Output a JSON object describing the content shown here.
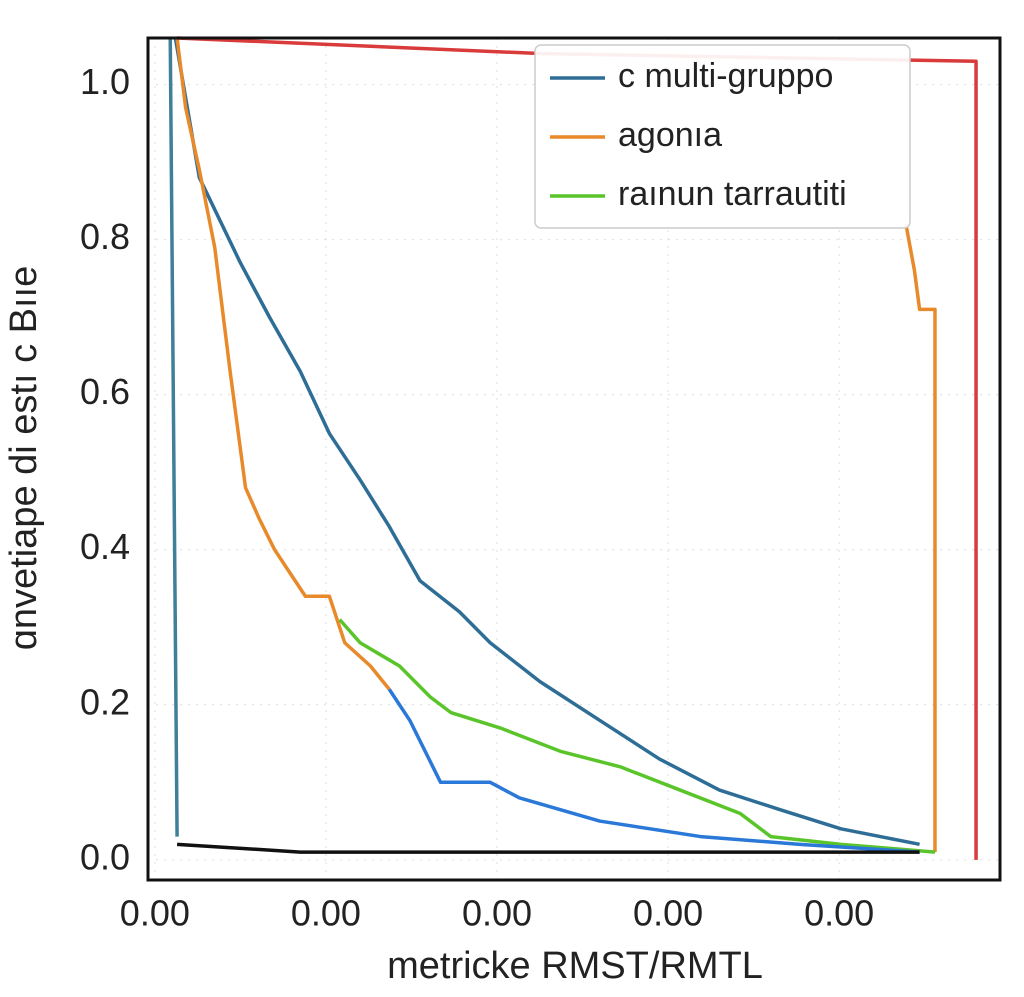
{
  "chart_data": {
    "type": "line",
    "y_label": "ɑnvetiape  di estı c Bııe",
    "x_label": "metricke RMST/RMTL",
    "xlim": [
      -0.04,
      4.94
    ],
    "ylim": [
      -0.026,
      1.06
    ],
    "xticks": [
      {
        "value": 0,
        "label": "0.00"
      },
      {
        "value": 1,
        "label": "0.00"
      },
      {
        "value": 2,
        "label": "0.00"
      },
      {
        "value": 3,
        "label": "0.00"
      },
      {
        "value": 4,
        "label": "0.00"
      }
    ],
    "yticks": [
      {
        "value": 0,
        "label": "0.0"
      },
      0.2,
      0.4,
      0.6,
      0.8,
      {
        "value": 1,
        "label": "1.0"
      }
    ],
    "grid": true,
    "legend": "upper right",
    "series": [
      {
        "name": "c multi-gruppo",
        "color": "#2e6e96",
        "x": [
          0.12,
          0.26,
          0.5,
          0.67,
          0.85,
          1.02,
          1.2,
          1.37,
          1.55,
          1.78,
          1.96,
          2.25,
          2.6,
          2.95,
          3.3,
          3.65,
          4.01,
          4.47
        ],
        "values": [
          1.06,
          0.88,
          0.77,
          0.7,
          0.63,
          0.55,
          0.49,
          0.43,
          0.36,
          0.32,
          0.28,
          0.23,
          0.18,
          0.13,
          0.09,
          0.065,
          0.04,
          0.02
        ]
      },
      {
        "name": "agonıa",
        "color": "#e8892a",
        "x": [
          0.13,
          0.18,
          0.26,
          0.35,
          0.44,
          0.53,
          0.61,
          0.7,
          0.79,
          0.88,
          1.02,
          1.11,
          1.26,
          1.37,
          null,
          4.39,
          4.44,
          4.47,
          4.56,
          4.56
        ],
        "values": [
          1.06,
          0.97,
          0.89,
          0.79,
          0.63,
          0.48,
          0.44,
          0.4,
          0.37,
          0.34,
          0.34,
          0.28,
          0.25,
          0.22,
          null,
          0.82,
          0.76,
          0.71,
          0.71,
          0.01
        ]
      },
      {
        "name": "raınun tarrautiti",
        "color": "#5ac52a",
        "x": [
          1.08,
          1.2,
          1.43,
          1.61,
          1.73,
          2.02,
          2.37,
          2.72,
          3.07,
          3.42,
          3.6,
          4.01,
          4.56
        ],
        "values": [
          0.31,
          0.28,
          0.25,
          0.21,
          0.19,
          0.17,
          0.14,
          0.12,
          0.09,
          0.06,
          0.03,
          0.02,
          0.01
        ]
      },
      {
        "color": "#2a78d8",
        "x": [
          1.37,
          1.49,
          1.67,
          1.96,
          2.13,
          2.6,
          3.19,
          3.77,
          4.47
        ],
        "values": [
          0.22,
          0.18,
          0.1,
          0.1,
          0.08,
          0.05,
          0.03,
          0.02,
          0.01
        ]
      },
      {
        "color": "#d93a3a",
        "x": [
          0.13,
          2.25,
          4.8,
          4.8
        ],
        "values": [
          1.06,
          1.04,
          1.03,
          0
        ]
      },
      {
        "color": "#111111",
        "x": [
          0.13,
          0.85,
          4.47
        ],
        "values": [
          0.02,
          0.01,
          0.01
        ]
      },
      {
        "color": "#3f7f99",
        "x": [
          0.09,
          0.13
        ],
        "values": [
          1.06,
          0.03
        ]
      }
    ]
  }
}
